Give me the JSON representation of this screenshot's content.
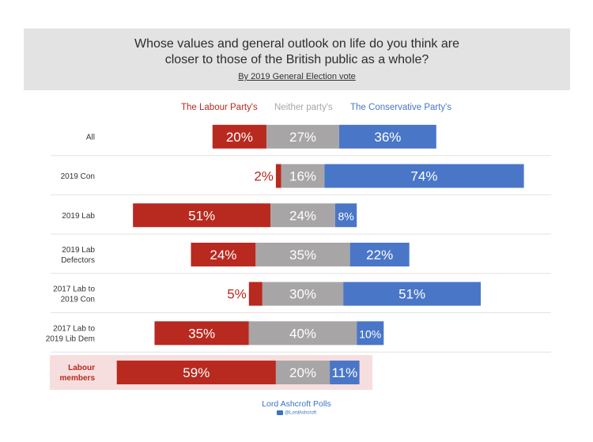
{
  "header": {
    "title_line1": "Whose values and general outlook on life do you think are",
    "title_line2": "closer to those of the British public as a whole?",
    "subtitle": "By 2019 General Election vote"
  },
  "legend": {
    "labour": "The Labour Party's",
    "neither": "Neither party's",
    "conservative": "The Conservative Party's"
  },
  "colors": {
    "labour": "#b8291f",
    "neither": "#a8a5a6",
    "conservative": "#4a76c8",
    "highlight": "#f7dede"
  },
  "footer": {
    "source": "Lord Ashcroft Polls",
    "handle": "@LordAshcroft"
  },
  "chart_data": {
    "type": "bar",
    "stacked": true,
    "orientation": "horizontal",
    "categories": [
      [
        "All"
      ],
      [
        "2019 Con"
      ],
      [
        "2019 Lab"
      ],
      [
        "2019 Lab",
        "Defectors"
      ],
      [
        "2017 Lab to",
        "2019 Con"
      ],
      [
        "2017 Lab to",
        "2019 Lib Dem"
      ],
      [
        "Labour",
        "members"
      ]
    ],
    "highlighted_category_index": 6,
    "series": [
      {
        "name": "The Labour Party's",
        "values": [
          20,
          2,
          51,
          24,
          5,
          35,
          59
        ]
      },
      {
        "name": "Neither party's",
        "values": [
          27,
          16,
          24,
          35,
          30,
          40,
          20
        ]
      },
      {
        "name": "The Conservative Party's",
        "values": [
          36,
          74,
          8,
          22,
          51,
          10,
          11
        ]
      }
    ],
    "value_suffix": "%"
  }
}
